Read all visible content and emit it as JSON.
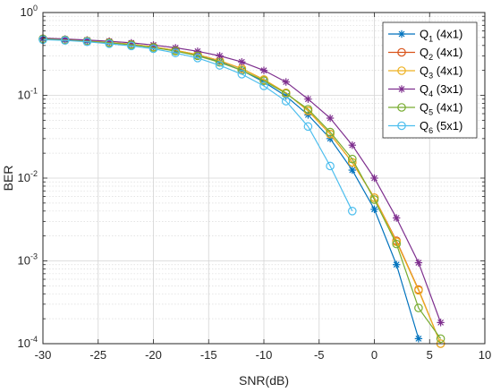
{
  "chart_data": {
    "type": "line",
    "xlabel": "SNR(dB)",
    "ylabel": "BER",
    "xlim": [
      -30,
      10
    ],
    "ylim": [
      0.0001,
      1
    ],
    "yscale": "log",
    "grid": true,
    "legend_position": "top-right",
    "x_ticks": [
      "-30",
      "-25",
      "-20",
      "-15",
      "-10",
      "-5",
      "0",
      "5",
      "10"
    ],
    "y_ticks": [
      {
        "base": "10",
        "exp": "0",
        "value": 1
      },
      {
        "base": "10",
        "exp": "-1",
        "value": 0.1
      },
      {
        "base": "10",
        "exp": "-2",
        "value": 0.01
      },
      {
        "base": "10",
        "exp": "-3",
        "value": 0.001
      },
      {
        "base": "10",
        "exp": "-4",
        "value": 0.0001
      }
    ],
    "series": [
      {
        "name": "Q",
        "sub": "1",
        "suffix": " (4x1)",
        "color": "#0072BD",
        "marker": "star",
        "x": [
          -30,
          -28,
          -26,
          -24,
          -22,
          -20,
          -18,
          -16,
          -14,
          -12,
          -10,
          -8,
          -6,
          -4,
          -2,
          0,
          2,
          4
        ],
        "y": [
          0.48,
          0.465,
          0.45,
          0.432,
          0.41,
          0.38,
          0.345,
          0.305,
          0.255,
          0.2,
          0.145,
          0.098,
          0.058,
          0.03,
          0.0125,
          0.0042,
          0.0009,
          0.000115
        ]
      },
      {
        "name": "Q",
        "sub": "2",
        "suffix": " (4x1)",
        "color": "#D95319",
        "marker": "circle",
        "x": [
          -30,
          -28,
          -26,
          -24,
          -22,
          -20,
          -18,
          -16,
          -14,
          -12,
          -10,
          -8,
          -6,
          -4,
          -2,
          0,
          2,
          4,
          6
        ],
        "y": [
          0.48,
          0.468,
          0.452,
          0.435,
          0.413,
          0.384,
          0.35,
          0.31,
          0.262,
          0.21,
          0.155,
          0.107,
          0.065,
          0.034,
          0.0155,
          0.0058,
          0.00175,
          0.00045,
          0.0001
        ]
      },
      {
        "name": "Q",
        "sub": "3",
        "suffix": " (4x1)",
        "color": "#EDB120",
        "marker": "circle",
        "x": [
          -30,
          -28,
          -26,
          -24,
          -22,
          -20,
          -18,
          -16,
          -14,
          -12,
          -10,
          -8,
          -6,
          -4,
          -2,
          0,
          2,
          4,
          6
        ],
        "y": [
          0.48,
          0.468,
          0.452,
          0.435,
          0.413,
          0.384,
          0.35,
          0.31,
          0.262,
          0.21,
          0.155,
          0.107,
          0.065,
          0.034,
          0.0155,
          0.0058,
          0.0017,
          0.00044,
          0.0001
        ]
      },
      {
        "name": "Q",
        "sub": "4",
        "suffix": " (3x1)",
        "color": "#7E2F8E",
        "marker": "star",
        "x": [
          -30,
          -28,
          -26,
          -24,
          -22,
          -20,
          -18,
          -16,
          -14,
          -12,
          -10,
          -8,
          -6,
          -4,
          -2,
          0,
          2,
          4,
          6
        ],
        "y": [
          0.49,
          0.478,
          0.465,
          0.45,
          0.43,
          0.405,
          0.375,
          0.34,
          0.3,
          0.253,
          0.2,
          0.145,
          0.09,
          0.053,
          0.025,
          0.01,
          0.0033,
          0.00095,
          0.00018
        ]
      },
      {
        "name": "Q",
        "sub": "5",
        "suffix": " (4x1)",
        "color": "#77AC30",
        "marker": "circle",
        "x": [
          -30,
          -28,
          -26,
          -24,
          -22,
          -20,
          -18,
          -16,
          -14,
          -12,
          -10,
          -8,
          -6,
          -4,
          -2,
          0,
          2,
          4,
          6
        ],
        "y": [
          0.48,
          0.466,
          0.45,
          0.43,
          0.408,
          0.378,
          0.342,
          0.3,
          0.25,
          0.2,
          0.15,
          0.105,
          0.068,
          0.036,
          0.017,
          0.0055,
          0.0016,
          0.00027,
          0.000115
        ]
      },
      {
        "name": "Q",
        "sub": "6",
        "suffix": " (5x1)",
        "color": "#4DBEEE",
        "marker": "circle",
        "x": [
          -30,
          -28,
          -26,
          -24,
          -22,
          -20,
          -18,
          -16,
          -14,
          -12,
          -10,
          -8,
          -6,
          -4,
          -2
        ],
        "y": [
          0.47,
          0.46,
          0.443,
          0.42,
          0.395,
          0.365,
          0.325,
          0.282,
          0.23,
          0.18,
          0.13,
          0.085,
          0.042,
          0.014,
          0.004
        ]
      }
    ]
  }
}
